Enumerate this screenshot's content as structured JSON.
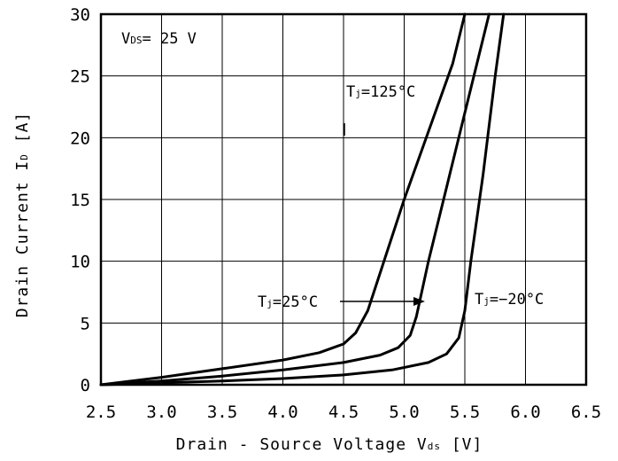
{
  "chart_data": {
    "type": "line",
    "xlabel_parts": {
      "prefix": "Drain - Source Voltage ",
      "symbol": "V",
      "sub": "ds",
      "unit": " [V]"
    },
    "ylabel_parts": {
      "prefix": "Drain Current ",
      "symbol": "I",
      "sub": "D",
      "unit": " [A]"
    },
    "xlim": [
      2.5,
      6.5
    ],
    "ylim": [
      0,
      30
    ],
    "x_ticks": [
      "2.5",
      "3.0",
      "3.5",
      "4.0",
      "4.5",
      "5.0",
      "5.5",
      "6.0",
      "6.5"
    ],
    "y_ticks": [
      "0",
      "5",
      "10",
      "15",
      "20",
      "25",
      "30"
    ],
    "grid": true,
    "condition": {
      "symbol": "V",
      "sub": "DS",
      "text": "= 25 V"
    },
    "series": [
      {
        "name": "Tj=125°C",
        "label": {
          "symbol": "T",
          "sub": "j",
          "text": "=125°C"
        },
        "x": [
          2.5,
          3.0,
          3.5,
          4.0,
          4.3,
          4.5,
          4.6,
          4.7,
          4.8,
          5.0,
          5.2,
          5.4,
          5.5
        ],
        "y": [
          0,
          0.6,
          1.3,
          2.0,
          2.6,
          3.3,
          4.2,
          6.0,
          9.0,
          15.0,
          20.5,
          26.0,
          30.0
        ]
      },
      {
        "name": "Tj=25°C",
        "label": {
          "symbol": "T",
          "sub": "j",
          "text": "=25°C"
        },
        "x": [
          2.5,
          3.0,
          3.5,
          4.0,
          4.5,
          4.8,
          4.95,
          5.05,
          5.1,
          5.2,
          5.4,
          5.55,
          5.7
        ],
        "y": [
          0,
          0.3,
          0.7,
          1.2,
          1.8,
          2.4,
          3.0,
          4.0,
          5.5,
          10.0,
          18.0,
          24.0,
          30.0
        ]
      },
      {
        "name": "Tj=-20°C",
        "label": {
          "symbol": "T",
          "sub": "j",
          "text": "=−20°C"
        },
        "x": [
          2.5,
          3.0,
          3.5,
          4.0,
          4.5,
          4.9,
          5.2,
          5.35,
          5.45,
          5.5,
          5.55,
          5.65,
          5.75,
          5.82
        ],
        "y": [
          0,
          0.15,
          0.3,
          0.5,
          0.8,
          1.2,
          1.8,
          2.5,
          3.8,
          6.0,
          10.0,
          17.0,
          25.0,
          30.0
        ]
      }
    ]
  }
}
